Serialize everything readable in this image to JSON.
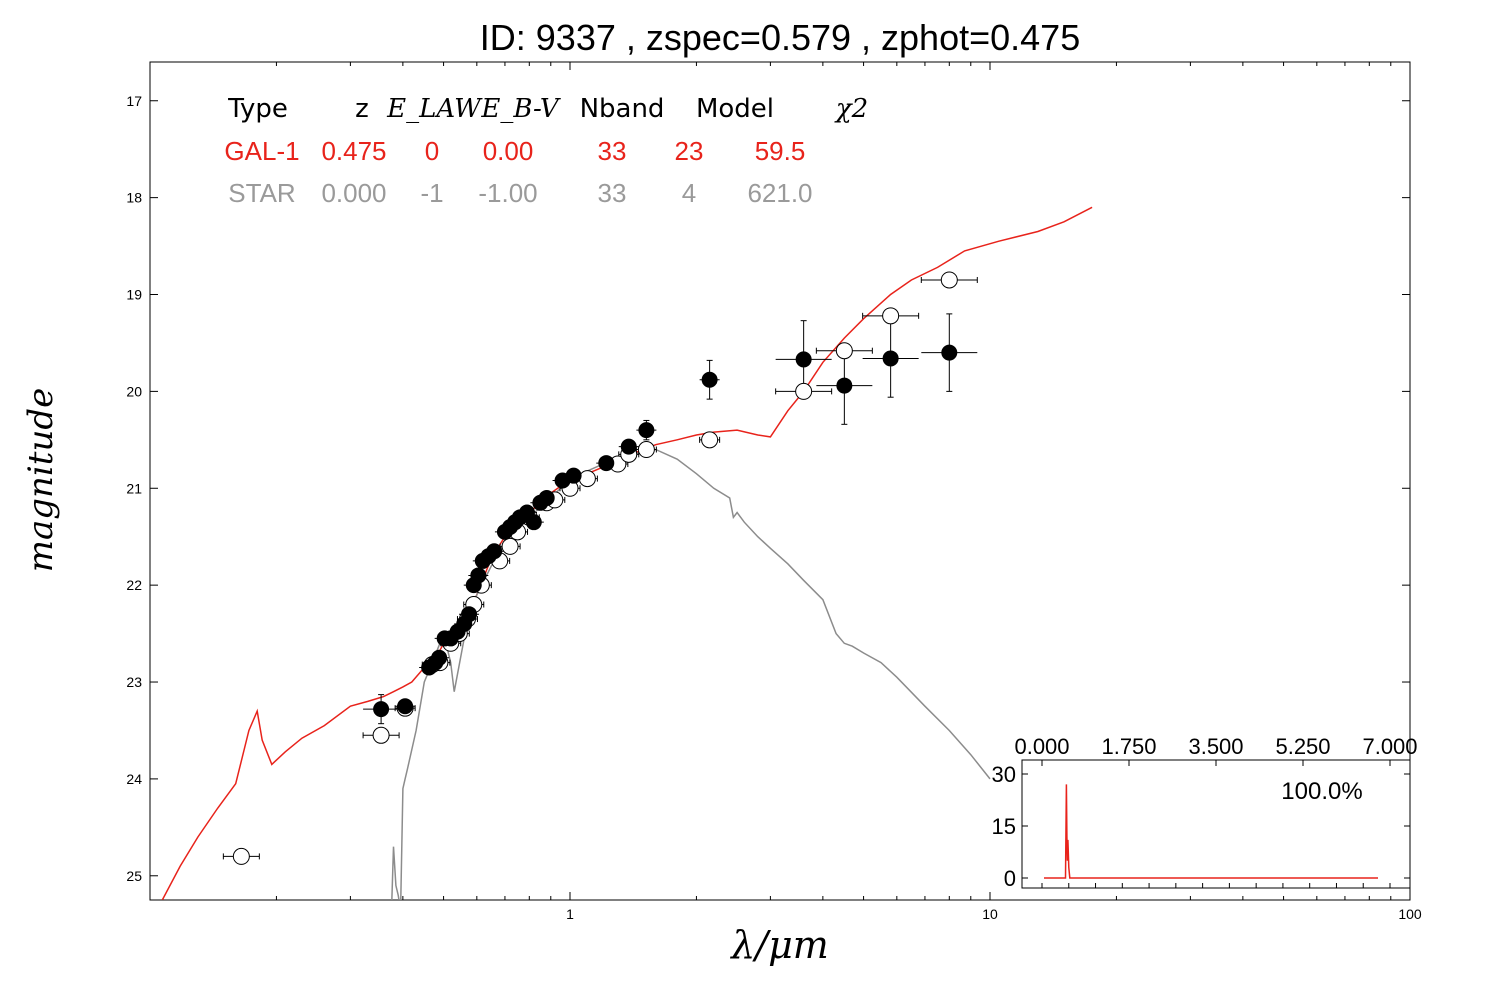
{
  "title": "ID:  9337  , zspec=0.579 , zphot=0.475",
  "chart_data": {
    "type": "scatter",
    "xlabel": "λ/μm",
    "ylabel": "magnitude",
    "xscale": "log",
    "xlim": [
      0.1,
      100
    ],
    "ylim": [
      25.25,
      16.6
    ],
    "y_inverted": true,
    "x_ticks": [
      "1",
      "10",
      "100"
    ],
    "y_ticks": [
      "17",
      "18",
      "19",
      "20",
      "21",
      "22",
      "23",
      "24",
      "25"
    ],
    "fit_table": {
      "header": [
        "Type",
        "z",
        "E_LAW",
        "E_B-V",
        "Nband",
        "Model",
        "χ2"
      ],
      "rows": [
        {
          "name": "gal",
          "color": "#e8231b",
          "cells": [
            "GAL-1",
            "0.475",
            "0",
            "0.00",
            "33",
            "23",
            "59.5"
          ]
        },
        {
          "name": "star",
          "color": "#9a9a9a",
          "cells": [
            "STAR",
            "0.000",
            "-1",
            "-1.00",
            "33",
            "4",
            "621.0"
          ]
        }
      ]
    },
    "series": [
      {
        "kind": "model",
        "color": "#e8231b",
        "x": [
          0.107,
          0.118,
          0.13,
          0.145,
          0.16,
          0.172,
          0.18,
          0.185,
          0.195,
          0.21,
          0.23,
          0.26,
          0.3,
          0.33,
          0.36,
          0.38,
          0.4,
          0.42,
          0.45,
          0.48,
          0.5,
          0.53,
          0.56,
          0.6,
          0.65,
          0.7,
          0.75,
          0.8,
          0.85,
          0.9,
          0.95,
          1.0,
          1.1,
          1.2,
          1.3,
          1.5,
          1.6,
          1.8,
          2.0,
          2.2,
          2.5,
          2.8,
          3.0,
          3.3,
          3.6,
          4.0,
          4.5,
          5.0,
          5.8,
          6.5,
          7.5,
          8.7,
          10.5,
          13.0,
          15.0,
          17.5
        ],
        "y": [
          25.25,
          24.9,
          24.6,
          24.3,
          24.05,
          23.5,
          23.3,
          23.6,
          23.85,
          23.72,
          23.58,
          23.45,
          23.25,
          23.2,
          23.15,
          23.1,
          23.05,
          23.0,
          22.85,
          22.75,
          22.6,
          22.5,
          22.4,
          22.1,
          21.72,
          21.5,
          21.35,
          21.25,
          21.15,
          21.05,
          20.98,
          20.93,
          20.85,
          20.78,
          20.7,
          20.6,
          20.55,
          20.5,
          20.45,
          20.42,
          20.4,
          20.45,
          20.47,
          20.2,
          20.0,
          19.7,
          19.45,
          19.25,
          19.0,
          18.85,
          18.72,
          18.55,
          18.45,
          18.35,
          18.25,
          18.1
        ]
      },
      {
        "kind": "model",
        "color": "#8c8c8c",
        "x": [
          0.375,
          0.38,
          0.385,
          0.39,
          0.395,
          0.4,
          0.405,
          0.41,
          0.43,
          0.45,
          0.47,
          0.49,
          0.5,
          0.52,
          0.53,
          0.56,
          0.6,
          0.65,
          0.7,
          0.8,
          0.9,
          1.0,
          1.2,
          1.4,
          1.6,
          1.8,
          2.0,
          2.2,
          2.4,
          2.45,
          2.5,
          2.6,
          2.8,
          3.0,
          3.3,
          3.6,
          4.0,
          4.3,
          4.5,
          4.7,
          5.0,
          5.5,
          6.0,
          7.0,
          8.0,
          9.0,
          10.0
        ],
        "y": [
          25.5,
          24.7,
          25.1,
          25.2,
          25.35,
          24.1,
          24.0,
          23.9,
          23.5,
          23.0,
          22.8,
          22.6,
          22.5,
          22.8,
          23.1,
          22.55,
          22.1,
          21.8,
          21.55,
          21.3,
          21.1,
          20.9,
          20.75,
          20.65,
          20.6,
          20.7,
          20.85,
          21.0,
          21.1,
          21.3,
          21.25,
          21.35,
          21.5,
          21.62,
          21.78,
          21.95,
          22.15,
          22.5,
          22.6,
          22.63,
          22.7,
          22.8,
          22.95,
          23.25,
          23.5,
          23.75,
          24.0
        ]
      },
      {
        "kind": "observed",
        "marker": "filled",
        "x": [
          0.355,
          0.405,
          0.462,
          0.478,
          0.488,
          0.503,
          0.52,
          0.54,
          0.56,
          0.575,
          0.59,
          0.605,
          0.62,
          0.64,
          0.66,
          0.7,
          0.72,
          0.74,
          0.76,
          0.79,
          0.82,
          0.85,
          0.88,
          0.96,
          1.02,
          1.22,
          1.38,
          1.52,
          2.15,
          3.6,
          4.5,
          5.8,
          8.0
        ],
        "y": [
          23.28,
          23.25,
          22.85,
          22.8,
          22.75,
          22.55,
          22.55,
          22.48,
          22.4,
          22.3,
          22.0,
          21.9,
          21.75,
          21.7,
          21.65,
          21.45,
          21.4,
          21.35,
          21.3,
          21.25,
          21.35,
          21.15,
          21.1,
          20.92,
          20.87,
          20.74,
          20.57,
          20.4,
          19.88,
          19.67,
          19.94,
          19.66,
          19.6
        ],
        "yerr": [
          0.15,
          0.05,
          0.04,
          0.04,
          0.04,
          0.03,
          0.03,
          0.03,
          0.03,
          0.03,
          0.03,
          0.03,
          0.03,
          0.03,
          0.03,
          0.03,
          0.03,
          0.03,
          0.03,
          0.03,
          0.03,
          0.03,
          0.03,
          0.03,
          0.03,
          0.03,
          0.03,
          0.1,
          0.2,
          0.4,
          0.4,
          0.4,
          0.4
        ]
      },
      {
        "kind": "predicted",
        "marker": "open",
        "x": [
          0.165,
          0.355,
          0.405,
          0.47,
          0.49,
          0.52,
          0.545,
          0.57,
          0.59,
          0.615,
          0.68,
          0.72,
          0.75,
          0.8,
          0.88,
          0.92,
          1.0,
          1.1,
          1.3,
          1.38,
          1.52,
          2.15,
          3.6,
          4.5,
          5.8,
          8.0
        ],
        "y": [
          24.8,
          23.55,
          23.27,
          22.82,
          22.8,
          22.6,
          22.5,
          22.35,
          22.2,
          22.0,
          21.75,
          21.6,
          21.45,
          21.3,
          21.15,
          21.12,
          21.0,
          20.9,
          20.75,
          20.65,
          20.6,
          20.5,
          20.0,
          19.58,
          19.22,
          18.85
        ]
      }
    ],
    "inset": {
      "x_ticks": [
        "0.000",
        "1.750",
        "3.500",
        "5.250",
        "7.000"
      ],
      "xlim": [
        0,
        7
      ],
      "y_ticks": [
        "30",
        "15",
        "0"
      ],
      "ylim": [
        -3,
        33
      ],
      "annotation": "100.0%",
      "color": "#e8231b",
      "x": [
        0,
        0.4,
        0.45,
        0.47,
        0.48,
        0.49,
        0.5,
        0.52,
        0.54,
        0.6,
        7.0
      ],
      "y": [
        0,
        0,
        0,
        27,
        12,
        5,
        11,
        3,
        0,
        0,
        0
      ]
    }
  }
}
